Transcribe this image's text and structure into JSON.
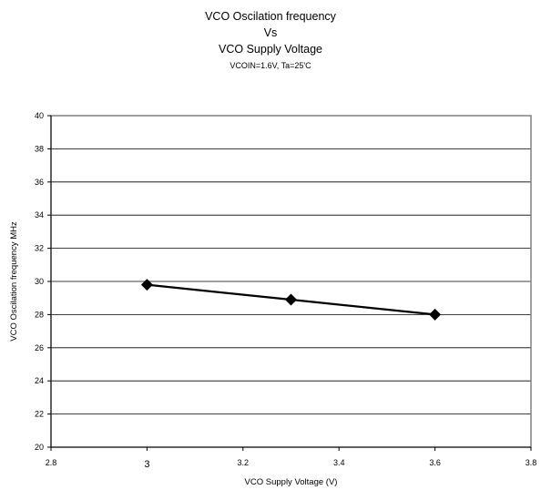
{
  "chart_data": {
    "type": "line",
    "title_lines": [
      "VCO Oscilation frequency",
      "Vs",
      "VCO Supply Voltage"
    ],
    "subtitle": "VCOIN=1.6V, Ta=25'C",
    "xlabel": "VCO Supply Voltage (V)",
    "ylabel": "VCO Oscilation frequency MHz",
    "xlim": [
      2.8,
      3.8
    ],
    "ylim": [
      20,
      40
    ],
    "x_ticks": [
      "2.8",
      "3",
      "3.2",
      "3.4",
      "3.6",
      "3.8"
    ],
    "y_ticks": [
      "20",
      "22",
      "24",
      "26",
      "28",
      "30",
      "32",
      "34",
      "36",
      "38",
      "40"
    ],
    "grid": "horizontal",
    "series": [
      {
        "x": [
          3.0,
          3.3,
          3.6
        ],
        "y": [
          29.8,
          28.9,
          28.0
        ],
        "marker": "diamond",
        "color": "#000000"
      }
    ]
  }
}
